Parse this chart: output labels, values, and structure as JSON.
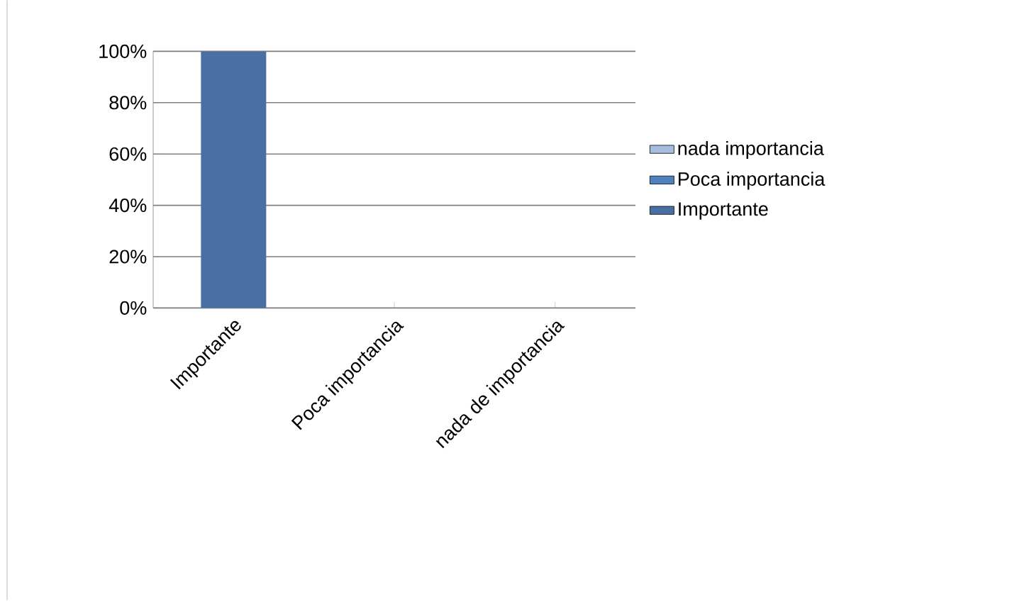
{
  "chart_data": {
    "type": "bar",
    "stacked": true,
    "categories": [
      "Importante",
      "Poca importancia",
      "nada de importancia"
    ],
    "series": [
      {
        "name": "Importante",
        "color": "#4a6fa5",
        "values": [
          100,
          0,
          0
        ]
      },
      {
        "name": "Poca importancia",
        "color": "#4f81bd",
        "values": [
          0,
          0,
          0
        ]
      },
      {
        "name": "nada importancia",
        "color": "#a7bde0",
        "values": [
          0,
          0,
          0
        ]
      }
    ],
    "ylim": [
      0,
      100
    ],
    "yticks": [
      {
        "value": 0,
        "label": "0%"
      },
      {
        "value": 20,
        "label": "20%"
      },
      {
        "value": 40,
        "label": "40%"
      },
      {
        "value": 60,
        "label": "60%"
      },
      {
        "value": 80,
        "label": "80%"
      },
      {
        "value": 100,
        "label": "100%"
      }
    ],
    "grid": "y",
    "legend": "right"
  }
}
